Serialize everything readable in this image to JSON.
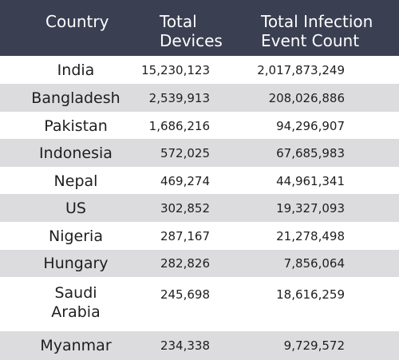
{
  "chart_data": {
    "type": "table",
    "columns": [
      "Country",
      "Total Devices",
      "Total Infection Event Count"
    ],
    "rows": [
      {
        "country": "India",
        "devices": "15,230,123",
        "events": "2,017,873,249"
      },
      {
        "country": "Bangladesh",
        "devices": "2,539,913",
        "events": "208,026,886"
      },
      {
        "country": "Pakistan",
        "devices": "1,686,216",
        "events": "94,296,907"
      },
      {
        "country": "Indonesia",
        "devices": "572,025",
        "events": "67,685,983"
      },
      {
        "country": "Nepal",
        "devices": "469,274",
        "events": "44,961,341"
      },
      {
        "country": "US",
        "devices": "302,852",
        "events": "19,327,093"
      },
      {
        "country": "Nigeria",
        "devices": "287,167",
        "events": "21,278,498"
      },
      {
        "country": "Hungary",
        "devices": "282,826",
        "events": "7,856,064"
      },
      {
        "country": "Saudi Arabia",
        "devices": "245,698",
        "events": "18,616,259"
      },
      {
        "country": "Myanmar",
        "devices": "234,338",
        "events": "9,729,572"
      }
    ]
  },
  "colors": {
    "header_bg": "#3a3f52",
    "header_text": "#ffffff",
    "row_shaded": "#dcdcdf",
    "row_plain": "#ffffff",
    "text": "#1e1e1e"
  }
}
